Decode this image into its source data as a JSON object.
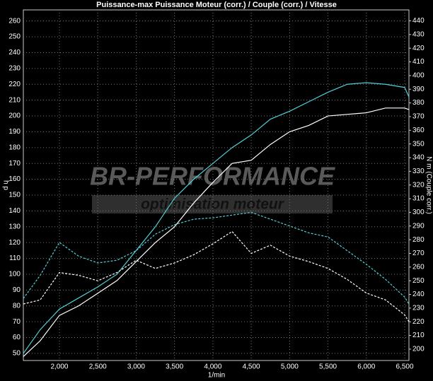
{
  "chart_data": {
    "type": "line",
    "title": "Puissance-max Puissance Moteur (corr.) / Couple (corr.) / Vitesse",
    "y_label": "h p",
    "y2_label": "N m (Couple corr.)",
    "x_label": "1/min",
    "annotations": [
      "BR-PERFORMANCE",
      "optimisation moteur"
    ],
    "x": [
      1530,
      1750,
      2000,
      2250,
      2500,
      2750,
      3000,
      3250,
      3500,
      3750,
      4000,
      4250,
      4500,
      4750,
      5000,
      5250,
      5500,
      5750,
      6000,
      6250,
      6500,
      6555
    ],
    "xlim": [
      1530,
      6555
    ],
    "xticks": [
      {
        "value": 2000,
        "label": "2,000"
      },
      {
        "value": 2500,
        "label": "2,500"
      },
      {
        "value": 3000,
        "label": "3,000"
      },
      {
        "value": 3500,
        "label": "3,500"
      },
      {
        "value": 4000,
        "label": "4,000"
      },
      {
        "value": 4500,
        "label": "4,500"
      },
      {
        "value": 5000,
        "label": "5,000"
      },
      {
        "value": 5500,
        "label": "5,500"
      },
      {
        "value": 6000,
        "label": "6,000"
      },
      {
        "value": 6500,
        "label": "6,500"
      }
    ],
    "ylim": [
      45.5,
      267
    ],
    "yticks": [
      50,
      60,
      70,
      80,
      90,
      100,
      110,
      120,
      130,
      140,
      150,
      160,
      170,
      180,
      190,
      200,
      210,
      220,
      230,
      240,
      250,
      260
    ],
    "y2lim": [
      191.7,
      448
    ],
    "y2ticks": [
      200,
      210,
      220,
      230,
      240,
      250,
      260,
      270,
      280,
      290,
      300,
      310,
      320,
      330,
      340,
      350,
      360,
      370,
      380,
      390,
      400,
      410,
      420,
      430,
      440
    ],
    "grid": true,
    "series": [
      {
        "color": "#4fd0d8",
        "dash": false,
        "values": [
          50,
          65,
          78,
          85,
          92,
          100,
          115,
          130,
          148,
          160,
          170,
          180,
          188,
          198,
          203,
          209,
          215,
          220,
          221,
          220,
          218,
          212
        ]
      },
      {
        "color": "#ffffff",
        "dash": false,
        "values": [
          48,
          58,
          74,
          80,
          88,
          96,
          108,
          120,
          130,
          145,
          158,
          170,
          172,
          182,
          190,
          194,
          200,
          201,
          202,
          205,
          205,
          204
        ]
      },
      {
        "color": "#4fd0d8",
        "dash": true,
        "axis": "y2",
        "values": [
          237,
          254,
          278,
          268,
          263,
          265,
          272,
          284,
          291,
          295,
          296,
          298,
          300,
          295,
          290,
          285,
          282,
          272,
          262,
          251,
          238,
          233
        ]
      },
      {
        "color": "#ffffff",
        "dash": true,
        "axis": "y2",
        "values": [
          233,
          236,
          256,
          254,
          250,
          256,
          265,
          259,
          263,
          269,
          277,
          286,
          270,
          276,
          268,
          264,
          259,
          251,
          241,
          236,
          225,
          220
        ]
      }
    ]
  }
}
